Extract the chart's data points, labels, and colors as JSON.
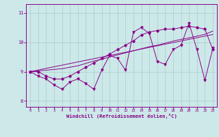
{
  "xlabel": "Windchill (Refroidissement éolien,°C)",
  "bg_color": "#cce8e8",
  "line_color": "#880088",
  "grid_color": "#aacccc",
  "xlim": [
    -0.5,
    23.5
  ],
  "ylim": [
    7.8,
    11.3
  ],
  "yticks": [
    8,
    9,
    10,
    11
  ],
  "xticks": [
    0,
    1,
    2,
    3,
    4,
    5,
    6,
    7,
    8,
    9,
    10,
    11,
    12,
    13,
    14,
    15,
    16,
    17,
    18,
    19,
    20,
    21,
    22,
    23
  ],
  "x_data": [
    0,
    1,
    2,
    3,
    4,
    5,
    6,
    7,
    8,
    9,
    10,
    11,
    12,
    13,
    14,
    15,
    16,
    17,
    18,
    19,
    20,
    21,
    22,
    23
  ],
  "y_zigzag": [
    9.0,
    8.85,
    8.75,
    8.55,
    8.4,
    8.65,
    8.75,
    8.6,
    8.4,
    9.05,
    9.55,
    9.45,
    9.05,
    10.35,
    10.5,
    10.3,
    9.35,
    9.25,
    9.75,
    9.9,
    10.65,
    9.75,
    8.7,
    9.8
  ],
  "y_smooth": [
    9.0,
    9.0,
    8.85,
    8.75,
    8.75,
    8.85,
    9.0,
    9.15,
    9.3,
    9.45,
    9.6,
    9.75,
    9.9,
    10.05,
    10.25,
    10.35,
    10.4,
    10.45,
    10.45,
    10.5,
    10.55,
    10.5,
    10.45,
    9.75
  ],
  "y_linear1": [
    9.0,
    9.055,
    9.11,
    9.165,
    9.22,
    9.275,
    9.33,
    9.385,
    9.44,
    9.495,
    9.55,
    9.605,
    9.66,
    9.715,
    9.77,
    9.825,
    9.88,
    9.935,
    9.99,
    10.045,
    10.1,
    10.155,
    10.21,
    10.265
  ],
  "y_linear2": [
    9.0,
    9.025,
    9.05,
    9.075,
    9.1,
    9.15,
    9.2,
    9.28,
    9.36,
    9.42,
    9.5,
    9.57,
    9.64,
    9.71,
    9.78,
    9.85,
    9.9,
    9.97,
    10.04,
    10.1,
    10.15,
    10.21,
    10.27,
    10.38
  ]
}
